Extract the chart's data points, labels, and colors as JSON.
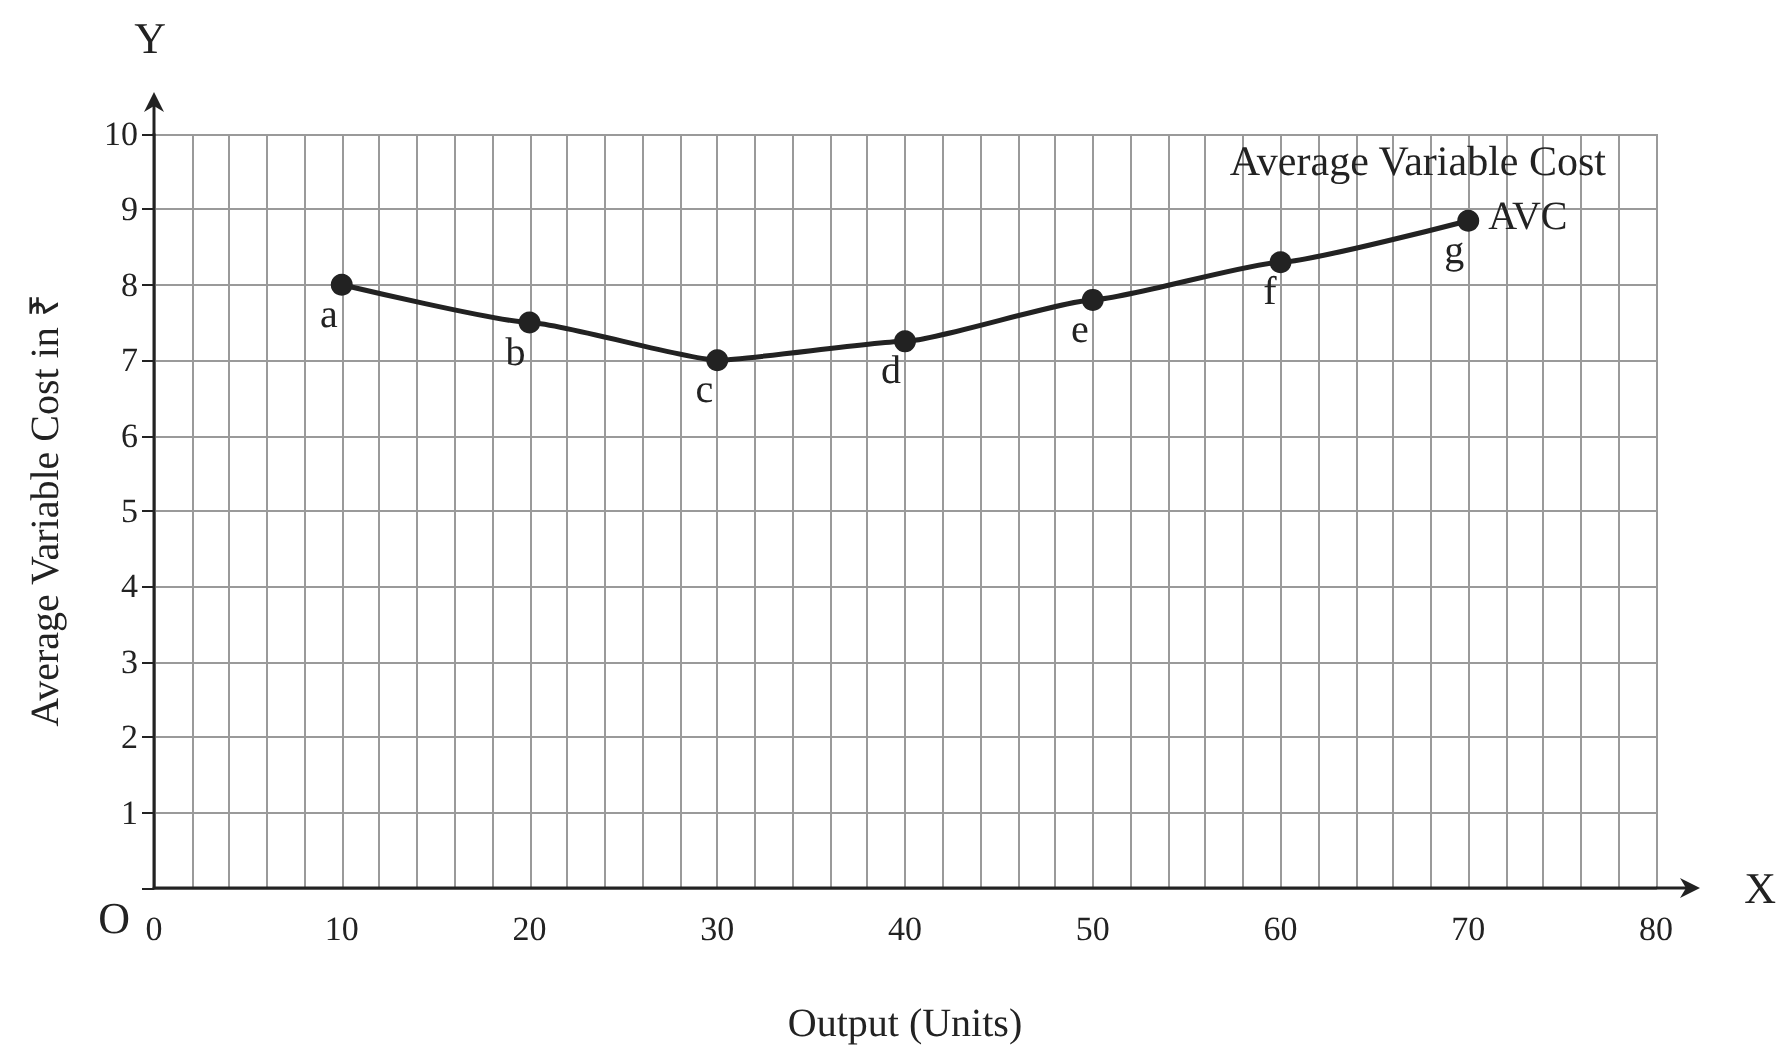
{
  "chart_data": {
    "type": "line",
    "xlabel": "Output (Units)",
    "ylabel": "Average Variable Cost in ₹",
    "x": [
      10,
      20,
      30,
      40,
      50,
      60,
      70
    ],
    "series": [
      {
        "name": "AVC",
        "color": "#222222",
        "values": [
          8,
          7.5,
          7,
          7.25,
          7.8,
          8.3,
          8.85
        ]
      }
    ],
    "xlim": [
      0,
      80
    ],
    "xticks": [
      0,
      {
        "value": 2,
        "label": null
      },
      {
        "value": 4,
        "label": null
      },
      {
        "value": 6,
        "label": null
      },
      {
        "value": 8,
        "label": null
      },
      10,
      {
        "value": 12,
        "label": null
      },
      {
        "value": 14,
        "label": null
      },
      {
        "value": 16,
        "label": null
      },
      {
        "value": 18,
        "label": null
      },
      20,
      {
        "value": 22,
        "label": null
      },
      {
        "value": 24,
        "label": null
      },
      {
        "value": 26,
        "label": null
      },
      {
        "value": 28,
        "label": null
      },
      30,
      {
        "value": 32,
        "label": null
      },
      {
        "value": 34,
        "label": null
      },
      {
        "value": 36,
        "label": null
      },
      {
        "value": 38,
        "label": null
      },
      40,
      {
        "value": 42,
        "label": null
      },
      {
        "value": 44,
        "label": null
      },
      {
        "value": 46,
        "label": null
      },
      {
        "value": 48,
        "label": null
      },
      50,
      {
        "value": 52,
        "label": null
      },
      {
        "value": 54,
        "label": null
      },
      {
        "value": 56,
        "label": null
      },
      {
        "value": 58,
        "label": null
      },
      60,
      {
        "value": 62,
        "label": null
      },
      {
        "value": 64,
        "label": null
      },
      {
        "value": 66,
        "label": null
      },
      {
        "value": 68,
        "label": null
      },
      70,
      {
        "value": 72,
        "label": null
      },
      {
        "value": 74,
        "label": null
      },
      {
        "value": 76,
        "label": null
      },
      {
        "value": 78,
        "label": null
      },
      80
    ],
    "ylim": [
      0,
      10
    ],
    "yticks": [
      {
        "value": 0,
        "label": null
      },
      1,
      2,
      3,
      4,
      5,
      6,
      7,
      8,
      9,
      10
    ],
    "grid": true,
    "marker": "circle",
    "line_style": "solid",
    "legend": false,
    "annotations": [
      "Average Variable Cost",
      "Y",
      "X",
      "O",
      {
        "text": "a",
        "x": 10,
        "y": 8
      },
      {
        "text": "b",
        "x": 20,
        "y": 7.5
      },
      {
        "text": "c",
        "x": 30,
        "y": 7
      },
      {
        "text": "d",
        "x": 40,
        "y": 7.25
      },
      {
        "text": "e",
        "x": 50,
        "y": 7.8
      },
      {
        "text": "f",
        "x": 60,
        "y": 8.3
      },
      {
        "text": "g",
        "x": 70,
        "y": 8.85
      }
    ]
  }
}
